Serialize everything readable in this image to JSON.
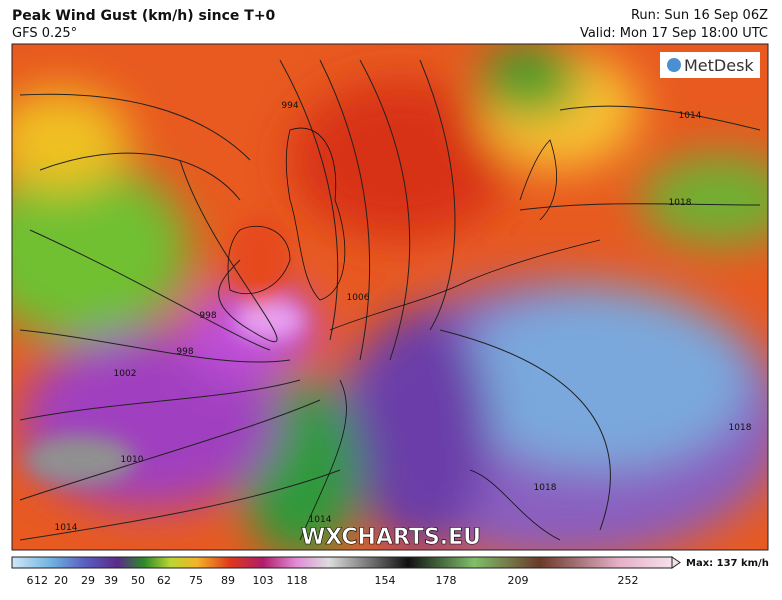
{
  "header": {
    "title": "Peak Wind Gust (km/h) since T+0",
    "subtitle": "GFS 0.25°",
    "run": "Run: Sun 16 Sep 06Z",
    "valid": "Valid: Mon 17 Sep 18:00 UTC"
  },
  "logo": "MetDesk",
  "watermark": "WXCHARTS.EU",
  "colorbar": {
    "ticks": [
      6,
      12,
      20,
      29,
      39,
      50,
      62,
      75,
      89,
      103,
      118,
      154,
      178,
      209,
      252
    ],
    "max_label": "Max: 137 km/h"
  },
  "isobar_labels": [
    "994",
    "998",
    "998",
    "1002",
    "1006",
    "1010",
    "1014",
    "1014",
    "1014",
    "1018",
    "1018",
    "1018"
  ]
}
